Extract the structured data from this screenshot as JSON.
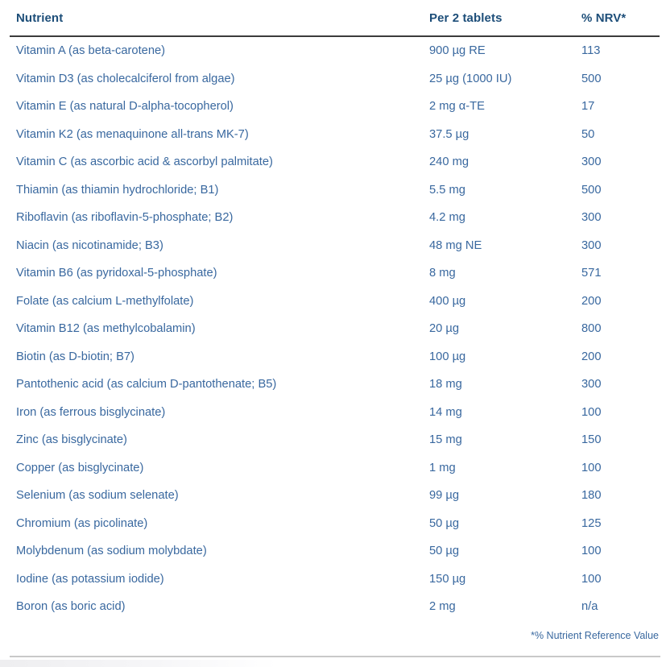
{
  "colors": {
    "background": "#ffffff",
    "header_text": "#1d4e79",
    "body_text": "#39689f",
    "header_rule": "#3b3b3b",
    "footer_rule": "#c9c9c9"
  },
  "table": {
    "columns": [
      "Nutrient",
      "Per 2 tablets",
      "% NRV*"
    ],
    "rows": [
      {
        "nutrient": "Vitamin A (as beta-carotene)",
        "amount": "900 µg RE",
        "nrv": "113"
      },
      {
        "nutrient": "Vitamin D3 (as cholecalciferol from algae)",
        "amount": "25 µg (1000 IU)",
        "nrv": "500"
      },
      {
        "nutrient": "Vitamin E (as natural D-alpha-tocopherol)",
        "amount": "2 mg α-TE",
        "nrv": "17"
      },
      {
        "nutrient": "Vitamin K2 (as menaquinone all-trans MK-7)",
        "amount": "37.5 µg",
        "nrv": "50"
      },
      {
        "nutrient": "Vitamin C (as ascorbic acid & ascorbyl palmitate)",
        "amount": "240 mg",
        "nrv": "300"
      },
      {
        "nutrient": "Thiamin (as thiamin hydrochloride; B1)",
        "amount": "5.5 mg",
        "nrv": "500"
      },
      {
        "nutrient": "Riboflavin (as riboflavin-5-phosphate; B2)",
        "amount": "4.2 mg",
        "nrv": "300"
      },
      {
        "nutrient": "Niacin (as nicotinamide; B3)",
        "amount": "48 mg NE",
        "nrv": "300"
      },
      {
        "nutrient": "Vitamin B6 (as pyridoxal-5-phosphate)",
        "amount": "8 mg",
        "nrv": "571"
      },
      {
        "nutrient": "Folate (as calcium L-methylfolate)",
        "amount": "400 µg",
        "nrv": "200"
      },
      {
        "nutrient": "Vitamin B12 (as methylcobalamin)",
        "amount": "20 µg",
        "nrv": "800"
      },
      {
        "nutrient": "Biotin (as D-biotin; B7)",
        "amount": "100 µg",
        "nrv": "200"
      },
      {
        "nutrient": "Pantothenic acid (as calcium D-pantothenate; B5)",
        "amount": "18 mg",
        "nrv": "300"
      },
      {
        "nutrient": "Iron (as ferrous bisglycinate)",
        "amount": "14 mg",
        "nrv": "100"
      },
      {
        "nutrient": "Zinc (as bisglycinate)",
        "amount": "15 mg",
        "nrv": "150"
      },
      {
        "nutrient": "Copper (as bisglycinate)",
        "amount": "1 mg",
        "nrv": "100"
      },
      {
        "nutrient": "Selenium (as sodium selenate)",
        "amount": "99 µg",
        "nrv": "180"
      },
      {
        "nutrient": "Chromium (as picolinate)",
        "amount": "50 µg",
        "nrv": "125"
      },
      {
        "nutrient": "Molybdenum (as sodium molybdate)",
        "amount": "50 µg",
        "nrv": "100"
      },
      {
        "nutrient": "Iodine (as potassium iodide)",
        "amount": "150 µg",
        "nrv": "100"
      },
      {
        "nutrient": "Boron (as boric acid)",
        "amount": "2 mg",
        "nrv": "n/a"
      }
    ]
  },
  "footnote": "*% Nutrient Reference Value"
}
